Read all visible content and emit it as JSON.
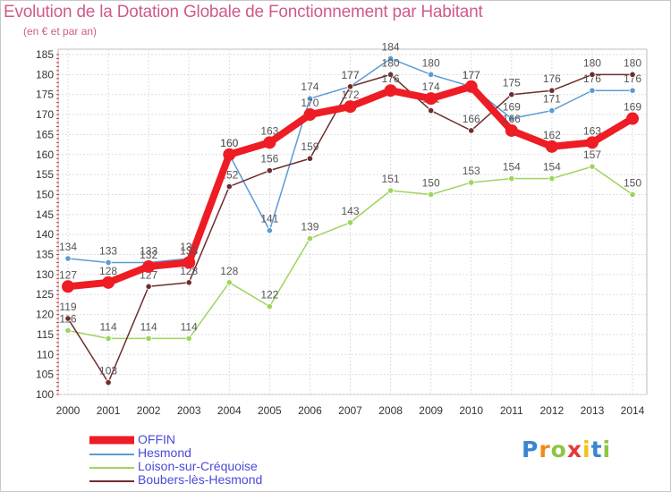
{
  "header": {
    "title": "Evolution de la Dotation Globale de Fonctionnement par Habitant",
    "subtitle": "(en € et par an)"
  },
  "logo": {
    "text": "Proxiti"
  },
  "chart_data": {
    "type": "line",
    "title": "Evolution de la Dotation Globale de Fonctionnement par Habitant",
    "subtitle": "(en € et par an)",
    "xlabel": "",
    "ylabel": "",
    "ylim": [
      100,
      185
    ],
    "ytick_step": 5,
    "grid": true,
    "legend_position": "bottom-left",
    "x": [
      2000,
      2001,
      2002,
      2003,
      2004,
      2005,
      2006,
      2007,
      2008,
      2009,
      2010,
      2011,
      2012,
      2013,
      2014
    ],
    "series": [
      {
        "name": "Hesmond",
        "color": "#5b9bd5",
        "values": [
          134,
          133,
          133,
          134,
          160,
          141,
          174,
          177,
          184,
          180,
          177,
          169,
          171,
          176,
          176
        ],
        "labels": [
          "134",
          "133",
          "133",
          "134",
          "160",
          "141",
          "174",
          "177",
          "184",
          "180",
          "177",
          "169",
          "171",
          "176",
          "176"
        ]
      },
      {
        "name": "Loison-sur-Créquoise",
        "color": "#9fd35f",
        "values": [
          116,
          114,
          114,
          114,
          128,
          122,
          139,
          143,
          151,
          150,
          153,
          154,
          154,
          157,
          150
        ],
        "labels": [
          "116",
          "114",
          "114",
          "114",
          "128",
          "122",
          "139",
          "143",
          "151",
          "150",
          "153",
          "154",
          "154",
          "157",
          "150"
        ]
      },
      {
        "name": "Boubers-lès-Hesmond",
        "color": "#6e2d2d",
        "values": [
          119,
          103,
          127,
          128,
          152,
          156,
          159,
          177,
          180,
          171,
          166,
          175,
          176,
          180,
          180
        ],
        "labels": [
          "119",
          "103",
          "127",
          "128",
          "152",
          "156",
          "159",
          "177",
          "180",
          "171",
          "166",
          "175",
          "176",
          "180",
          "180"
        ]
      },
      {
        "name": "OFFIN",
        "color": "#ee1c24",
        "values": [
          127,
          128,
          132,
          133,
          160,
          163,
          170,
          172,
          176,
          174,
          177,
          166,
          162,
          163,
          169
        ],
        "labels": [
          "127",
          "128",
          "132",
          "133",
          "160",
          "163",
          "170",
          "172",
          "176",
          "174",
          "177",
          "166",
          "162",
          "163",
          "169"
        ]
      }
    ],
    "legend_order": [
      "OFFIN",
      "Hesmond",
      "Loison-sur-Créquoise",
      "Boubers-lès-Hesmond"
    ]
  }
}
